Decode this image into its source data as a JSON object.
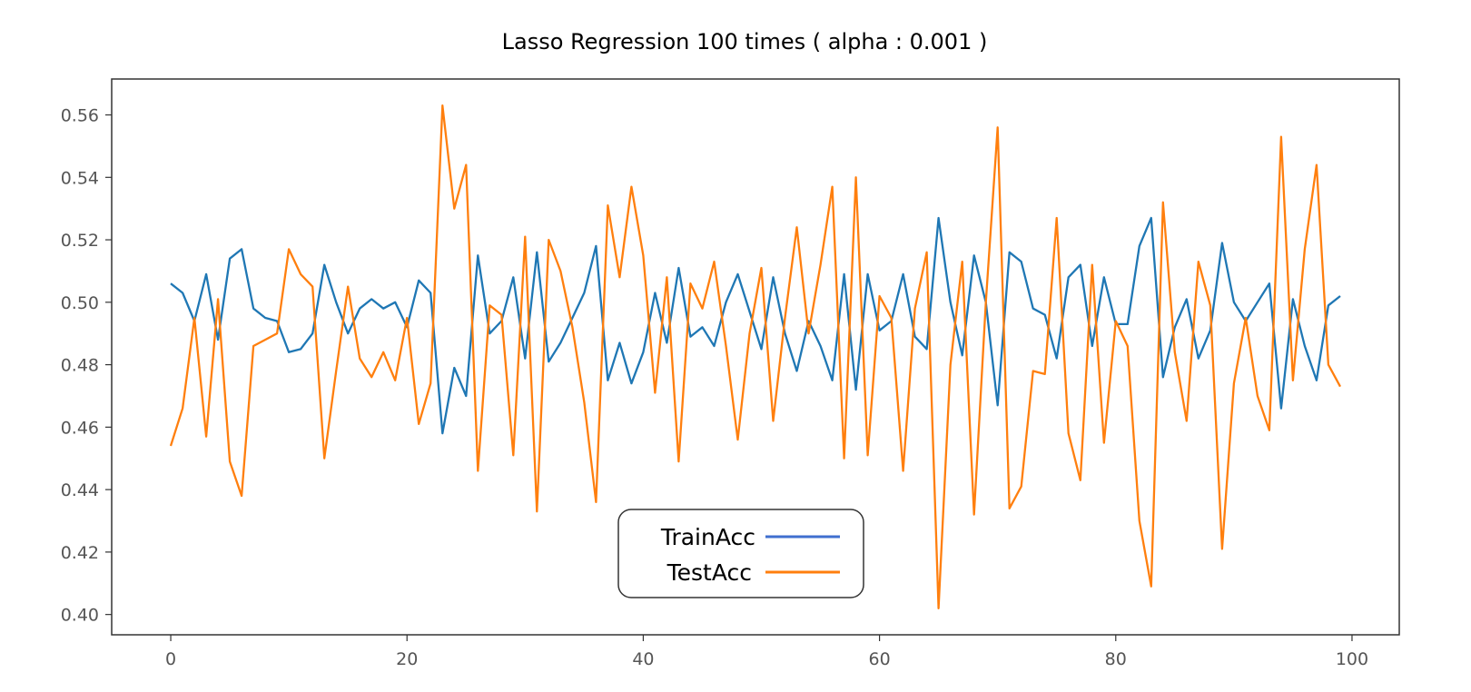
{
  "chart_data": {
    "type": "line",
    "title": "Lasso Regression 100 times ( alpha : 0.001 )",
    "xlabel": "",
    "ylabel": "",
    "xlim": [
      -5,
      104
    ],
    "ylim": [
      0.3935,
      0.5715
    ],
    "x_ticks": [
      0,
      20,
      40,
      60,
      80,
      100
    ],
    "y_ticks": [
      0.4,
      0.42,
      0.44,
      0.46,
      0.48,
      0.5,
      0.52,
      0.54,
      0.56
    ],
    "grid": false,
    "legend_position": "lower-center",
    "series": [
      {
        "name": "TrainAcc",
        "color": "#1f77b4",
        "legend_color": "#3f6fcf",
        "values": [
          0.506,
          0.503,
          0.494,
          0.509,
          0.488,
          0.514,
          0.517,
          0.498,
          0.495,
          0.494,
          0.484,
          0.485,
          0.49,
          0.512,
          0.5,
          0.49,
          0.498,
          0.501,
          0.498,
          0.5,
          0.492,
          0.507,
          0.503,
          0.458,
          0.479,
          0.47,
          0.515,
          0.49,
          0.494,
          0.508,
          0.482,
          0.516,
          0.481,
          0.487,
          0.495,
          0.503,
          0.518,
          0.475,
          0.487,
          0.474,
          0.484,
          0.503,
          0.487,
          0.511,
          0.489,
          0.492,
          0.486,
          0.5,
          0.509,
          0.497,
          0.485,
          0.508,
          0.49,
          0.478,
          0.494,
          0.486,
          0.475,
          0.509,
          0.472,
          0.509,
          0.491,
          0.494,
          0.509,
          0.489,
          0.485,
          0.527,
          0.5,
          0.483,
          0.515,
          0.5,
          0.467,
          0.516,
          0.513,
          0.498,
          0.496,
          0.482,
          0.508,
          0.512,
          0.486,
          0.508,
          0.493,
          0.493,
          0.518,
          0.527,
          0.476,
          0.492,
          0.501,
          0.482,
          0.491,
          0.519,
          0.5,
          0.494,
          0.5,
          0.506,
          0.466,
          0.501,
          0.486,
          0.475,
          0.499,
          0.502
        ]
      },
      {
        "name": "TestAcc",
        "color": "#ff7f0e",
        "legend_color": "#ff7f0e",
        "values": [
          0.454,
          0.466,
          0.495,
          0.457,
          0.501,
          0.449,
          0.438,
          0.486,
          0.488,
          0.49,
          0.517,
          0.509,
          0.505,
          0.45,
          0.478,
          0.505,
          0.482,
          0.476,
          0.484,
          0.475,
          0.495,
          0.461,
          0.474,
          0.563,
          0.53,
          0.544,
          0.446,
          0.499,
          0.496,
          0.451,
          0.521,
          0.433,
          0.52,
          0.51,
          0.492,
          0.468,
          0.436,
          0.531,
          0.508,
          0.537,
          0.515,
          0.471,
          0.508,
          0.449,
          0.506,
          0.498,
          0.513,
          0.486,
          0.456,
          0.49,
          0.511,
          0.462,
          0.495,
          0.524,
          0.49,
          0.512,
          0.537,
          0.45,
          0.54,
          0.451,
          0.502,
          0.495,
          0.446,
          0.498,
          0.516,
          0.402,
          0.48,
          0.513,
          0.432,
          0.5,
          0.556,
          0.434,
          0.441,
          0.478,
          0.477,
          0.527,
          0.458,
          0.443,
          0.512,
          0.455,
          0.494,
          0.486,
          0.43,
          0.409,
          0.532,
          0.484,
          0.462,
          0.513,
          0.499,
          0.421,
          0.474,
          0.495,
          0.47,
          0.459,
          0.553,
          0.475,
          0.517,
          0.544,
          0.48,
          0.473
        ]
      }
    ]
  }
}
